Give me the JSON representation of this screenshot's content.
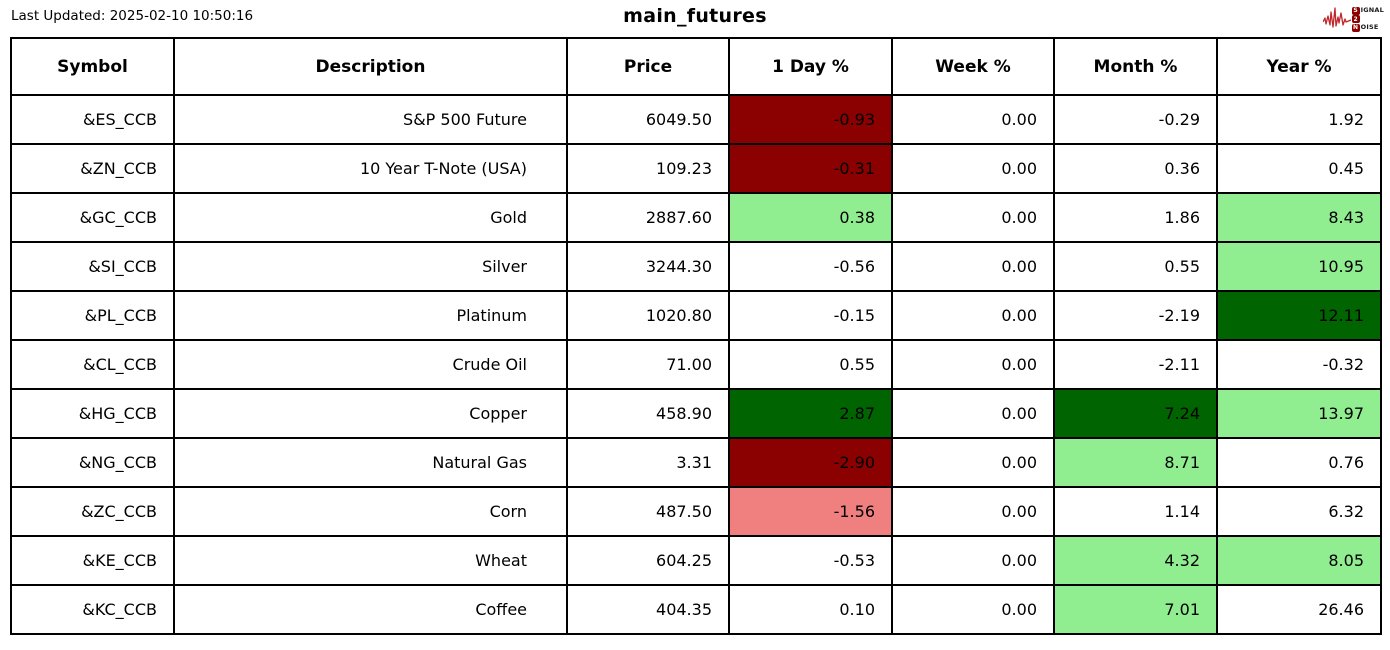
{
  "page": {
    "last_updated": "Last Updated: 2025-02-10 10:50:16",
    "title": "main_futures"
  },
  "logo": {
    "name": "signal-2-noise",
    "word1_initial": "S",
    "word1_rest": "IGNAL",
    "word2": "2",
    "word3_initial": "N",
    "word3_rest": "OISE"
  },
  "colors": {
    "strong_down": "#8B0000",
    "down": "#F08080",
    "up": "#90EE90",
    "strong_up": "#006400",
    "logo_red": "#C1272D",
    "logo_badge": "#8B0000",
    "border": "#000000"
  },
  "chart_data": {
    "type": "table",
    "title": "main_futures",
    "columns": [
      "Symbol",
      "Description",
      "Price",
      "1 Day %",
      "Week %",
      "Month %",
      "Year %"
    ],
    "rows": [
      {
        "cells": [
          "&ES_CCB",
          "S&P 500 Future",
          "6049.50",
          "-0.93",
          "0.00",
          "-0.29",
          "1.92"
        ],
        "bg": [
          null,
          null,
          null,
          "strong_down",
          null,
          null,
          null
        ]
      },
      {
        "cells": [
          "&ZN_CCB",
          "10 Year T-Note (USA)",
          "109.23",
          "-0.31",
          "0.00",
          "0.36",
          "0.45"
        ],
        "bg": [
          null,
          null,
          null,
          "strong_down",
          null,
          null,
          null
        ]
      },
      {
        "cells": [
          "&GC_CCB",
          "Gold",
          "2887.60",
          "0.38",
          "0.00",
          "1.86",
          "8.43"
        ],
        "bg": [
          null,
          null,
          null,
          "up",
          null,
          null,
          "up"
        ]
      },
      {
        "cells": [
          "&SI_CCB",
          "Silver",
          "3244.30",
          "-0.56",
          "0.00",
          "0.55",
          "10.95"
        ],
        "bg": [
          null,
          null,
          null,
          null,
          null,
          null,
          "up"
        ]
      },
      {
        "cells": [
          "&PL_CCB",
          "Platinum",
          "1020.80",
          "-0.15",
          "0.00",
          "-2.19",
          "12.11"
        ],
        "bg": [
          null,
          null,
          null,
          null,
          null,
          null,
          "strong_up"
        ]
      },
      {
        "cells": [
          "&CL_CCB",
          "Crude Oil",
          "71.00",
          "0.55",
          "0.00",
          "-2.11",
          "-0.32"
        ],
        "bg": [
          null,
          null,
          null,
          null,
          null,
          null,
          null
        ]
      },
      {
        "cells": [
          "&HG_CCB",
          "Copper",
          "458.90",
          "2.87",
          "0.00",
          "7.24",
          "13.97"
        ],
        "bg": [
          null,
          null,
          null,
          "strong_up",
          null,
          "strong_up",
          "up"
        ]
      },
      {
        "cells": [
          "&NG_CCB",
          "Natural Gas",
          "3.31",
          "-2.90",
          "0.00",
          "8.71",
          "0.76"
        ],
        "bg": [
          null,
          null,
          null,
          "strong_down",
          null,
          "up",
          null
        ]
      },
      {
        "cells": [
          "&ZC_CCB",
          "Corn",
          "487.50",
          "-1.56",
          "0.00",
          "1.14",
          "6.32"
        ],
        "bg": [
          null,
          null,
          null,
          "down",
          null,
          null,
          null
        ]
      },
      {
        "cells": [
          "&KE_CCB",
          "Wheat",
          "604.25",
          "-0.53",
          "0.00",
          "4.32",
          "8.05"
        ],
        "bg": [
          null,
          null,
          null,
          null,
          null,
          "up",
          "up"
        ]
      },
      {
        "cells": [
          "&KC_CCB",
          "Coffee",
          "404.35",
          "0.10",
          "0.00",
          "7.01",
          "26.46"
        ],
        "bg": [
          null,
          null,
          null,
          null,
          null,
          "up",
          null
        ]
      }
    ]
  }
}
